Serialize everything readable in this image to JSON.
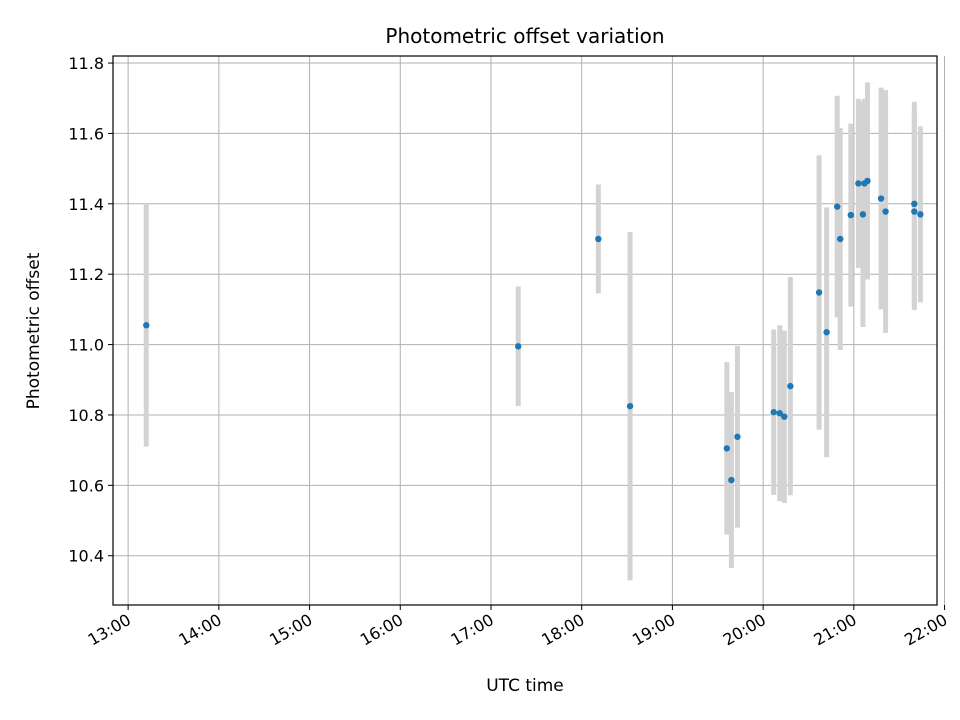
{
  "chart_data": {
    "type": "scatter",
    "title": "Photometric offset variation",
    "xlabel": "UTC time",
    "ylabel": "Photometric offset",
    "x_axis_type": "time",
    "xlim": [
      "12:50",
      "21:55"
    ],
    "ylim": [
      10.26,
      11.82
    ],
    "grid": true,
    "point_color": "#1f77b4",
    "errorbar_color": "#d3d3d3",
    "x_ticks": [
      "13:00",
      "14:00",
      "15:00",
      "16:00",
      "17:00",
      "18:00",
      "19:00",
      "20:00",
      "21:00",
      "22:00"
    ],
    "y_ticks": [
      10.4,
      10.6,
      10.8,
      11.0,
      11.2,
      11.4,
      11.6,
      11.8
    ],
    "y_tick_labels": [
      "10.4",
      "10.6",
      "10.8",
      "11.0",
      "11.2",
      "11.4",
      "11.6",
      "11.8"
    ],
    "points": [
      {
        "t": "13:12",
        "y": 11.055,
        "err": 0.345
      },
      {
        "t": "17:18",
        "y": 10.995,
        "err": 0.17
      },
      {
        "t": "18:11",
        "y": 11.3,
        "err": 0.155
      },
      {
        "t": "18:32",
        "y": 10.825,
        "err": 0.495
      },
      {
        "t": "19:36",
        "y": 10.705,
        "err": 0.245
      },
      {
        "t": "19:39",
        "y": 10.615,
        "err": 0.25
      },
      {
        "t": "19:43",
        "y": 10.738,
        "err": 0.258
      },
      {
        "t": "20:07",
        "y": 10.808,
        "err": 0.235
      },
      {
        "t": "20:11",
        "y": 10.805,
        "err": 0.25
      },
      {
        "t": "20:14",
        "y": 10.795,
        "err": 0.245
      },
      {
        "t": "20:18",
        "y": 10.882,
        "err": 0.31
      },
      {
        "t": "20:37",
        "y": 11.148,
        "err": 0.39
      },
      {
        "t": "20:42",
        "y": 11.035,
        "err": 0.355
      },
      {
        "t": "20:49",
        "y": 11.392,
        "err": 0.315
      },
      {
        "t": "20:51",
        "y": 11.3,
        "err": 0.315
      },
      {
        "t": "20:58",
        "y": 11.368,
        "err": 0.26
      },
      {
        "t": "21:03",
        "y": 11.458,
        "err": 0.24
      },
      {
        "t": "21:06",
        "y": 11.37,
        "err": 0.32
      },
      {
        "t": "21:07",
        "y": 11.458,
        "err": 0.24
      },
      {
        "t": "21:09",
        "y": 11.465,
        "err": 0.28
      },
      {
        "t": "21:18",
        "y": 11.415,
        "err": 0.315
      },
      {
        "t": "21:21",
        "y": 11.378,
        "err": 0.345
      },
      {
        "t": "21:40",
        "y": 11.4,
        "err": 0.29
      },
      {
        "t": "21:40",
        "y": 11.378,
        "err": 0.28
      },
      {
        "t": "21:44",
        "y": 11.37,
        "err": 0.25
      }
    ]
  }
}
